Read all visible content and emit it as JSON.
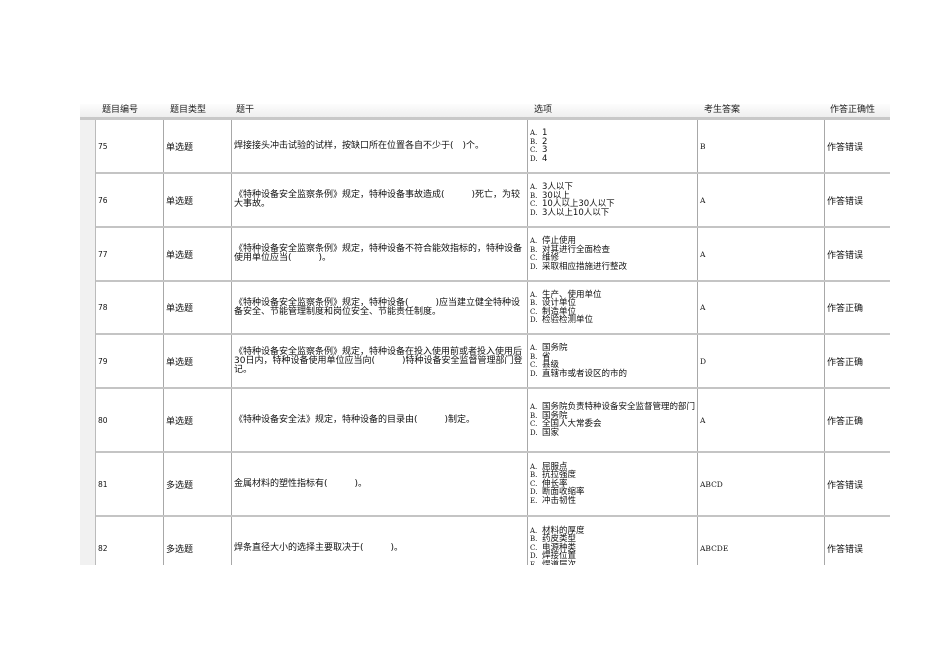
{
  "headers": [
    "题目编号",
    "题目类型",
    "题干",
    "选项",
    "考生答案",
    "作答正确性"
  ],
  "rows": [
    {
      "no": "75",
      "type": "单选题",
      "stem": "焊接接头冲击试验的试样，按缺口所在位置各自不少于(　)个。",
      "options": [
        [
          "A.",
          "1"
        ],
        [
          "B.",
          "2"
        ],
        [
          "C.",
          "3"
        ],
        [
          "D.",
          "4"
        ]
      ],
      "answer": "B",
      "result": "作答错误"
    },
    {
      "no": "76",
      "type": "单选题",
      "stem": "《特种设备安全监察条例》规定，特种设备事故造成(　　　)死亡，为较大事故。",
      "options": [
        [
          "A.",
          "3人以下"
        ],
        [
          "B.",
          "30以上"
        ],
        [
          "C.",
          "10人以上30人以下"
        ],
        [
          "D.",
          "3人以上10人以下"
        ]
      ],
      "answer": "A",
      "result": "作答错误"
    },
    {
      "no": "77",
      "type": "单选题",
      "stem": "《特种设备安全监察条例》规定，特种设备不符合能效指标的，特种设备使用单位应当(　　　)。",
      "options": [
        [
          "A.",
          "停止使用"
        ],
        [
          "B.",
          "对其进行全面检查"
        ],
        [
          "C.",
          "维修"
        ],
        [
          "D.",
          "采取相应措施进行整改"
        ]
      ],
      "answer": "A",
      "result": "作答错误"
    },
    {
      "no": "78",
      "type": "单选题",
      "stem": "《特种设备安全监察条例》规定，特种设备(　　　)应当建立健全特种设备安全、节能管理制度和岗位安全、节能责任制度。",
      "options": [
        [
          "A.",
          "生产、使用单位"
        ],
        [
          "B.",
          "设计单位"
        ],
        [
          "C.",
          "制造单位"
        ],
        [
          "D.",
          "检验检测单位"
        ]
      ],
      "answer": "A",
      "result": "作答正确"
    },
    {
      "no": "79",
      "type": "单选题",
      "stem": "《特种设备安全监察条例》规定，特种设备在投入使用前或者投入使用后30日内，特种设备使用单位应当向(　　　)特种设备安全监督管理部门登记。",
      "options": [
        [
          "A.",
          "国务院"
        ],
        [
          "B.",
          "省"
        ],
        [
          "C.",
          "县级"
        ],
        [
          "D.",
          "直辖市或者设区的市的"
        ]
      ],
      "answer": "D",
      "result": "作答正确"
    },
    {
      "no": "80",
      "type": "单选题",
      "stem": "《特种设备安全法》规定，特种设备的目录由(　　　)制定。",
      "options": [
        [
          "A.",
          "国务院负责特种设备安全监督管理的部门"
        ],
        [
          "B.",
          "国务院"
        ],
        [
          "C.",
          "全国人大常委会"
        ],
        [
          "D.",
          "国家"
        ]
      ],
      "answer": "A",
      "result": "作答正确"
    },
    {
      "no": "81",
      "type": "多选题",
      "stem": "金属材料的塑性指标有(　　　)。",
      "options": [
        [
          "A.",
          "屈服点"
        ],
        [
          "B.",
          "抗拉强度"
        ],
        [
          "C.",
          "伸长率"
        ],
        [
          "D.",
          "断面收缩率"
        ],
        [
          "E.",
          "冲击韧性"
        ]
      ],
      "answer": "ABCD",
      "result": "作答错误"
    },
    {
      "no": "82",
      "type": "多选题",
      "stem": "焊条直径大小的选择主要取决于(　　　)。",
      "options": [
        [
          "A.",
          "材料的厚度"
        ],
        [
          "B.",
          "药皮类型"
        ],
        [
          "C.",
          "电源种类"
        ],
        [
          "D.",
          "焊接位置"
        ],
        [
          "E.",
          "焊道层次"
        ]
      ],
      "answer": "ABCDE",
      "result": "作答错误"
    }
  ]
}
